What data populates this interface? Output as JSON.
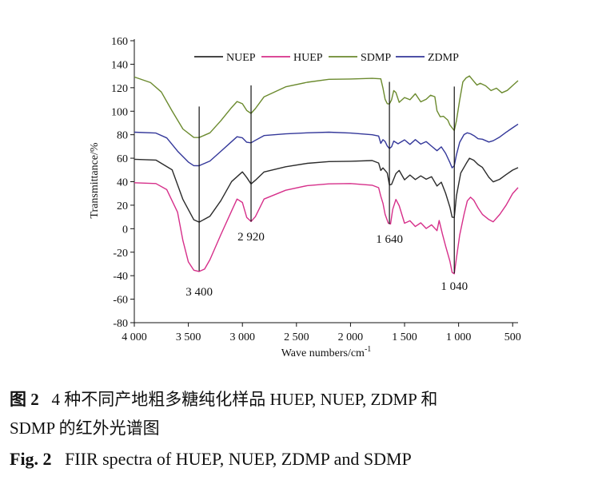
{
  "chart_data": {
    "type": "line",
    "xlabel": "Wave numbers/cm",
    "xlabel_sup": "-1",
    "ylabel": "Transmittance/%",
    "xlim": [
      4000,
      450
    ],
    "ylim": [
      -80,
      160
    ],
    "x_ticks": [
      {
        "value": 4000,
        "label": "4 000"
      },
      {
        "value": 3500,
        "label": "3 500"
      },
      {
        "value": 3000,
        "label": "3 000"
      },
      {
        "value": 2500,
        "label": "2 500"
      },
      {
        "value": 2000,
        "label": "2 000"
      },
      {
        "value": 1500,
        "label": "1 500"
      },
      {
        "value": 1000,
        "label": "1 000"
      },
      {
        "value": 500,
        "label": "500"
      }
    ],
    "y_ticks": [
      160,
      140,
      120,
      100,
      80,
      60,
      40,
      20,
      0,
      -20,
      -40,
      -60,
      -80
    ],
    "legend_position": "top",
    "series": [
      {
        "name": "NUEP",
        "color": "#2b2b2b",
        "points": [
          [
            4000,
            59
          ],
          [
            3800,
            58
          ],
          [
            3650,
            50
          ],
          [
            3550,
            25
          ],
          [
            3450,
            8
          ],
          [
            3400,
            6
          ],
          [
            3300,
            11
          ],
          [
            3200,
            24
          ],
          [
            3100,
            40
          ],
          [
            3000,
            48
          ],
          [
            2960,
            44
          ],
          [
            2920,
            38
          ],
          [
            2880,
            41
          ],
          [
            2800,
            48
          ],
          [
            2600,
            53
          ],
          [
            2400,
            56
          ],
          [
            2200,
            57
          ],
          [
            2000,
            57
          ],
          [
            1800,
            58
          ],
          [
            1740,
            56
          ],
          [
            1720,
            50
          ],
          [
            1700,
            52
          ],
          [
            1660,
            47
          ],
          [
            1640,
            37
          ],
          [
            1620,
            38
          ],
          [
            1580,
            47
          ],
          [
            1550,
            50
          ],
          [
            1500,
            42
          ],
          [
            1450,
            46
          ],
          [
            1400,
            42
          ],
          [
            1350,
            45
          ],
          [
            1300,
            42
          ],
          [
            1250,
            44
          ],
          [
            1200,
            36
          ],
          [
            1160,
            40
          ],
          [
            1120,
            30
          ],
          [
            1080,
            18
          ],
          [
            1060,
            10
          ],
          [
            1040,
            10
          ],
          [
            1020,
            28
          ],
          [
            980,
            47
          ],
          [
            930,
            55
          ],
          [
            900,
            60
          ],
          [
            860,
            58
          ],
          [
            820,
            55
          ],
          [
            780,
            52
          ],
          [
            720,
            44
          ],
          [
            680,
            40
          ],
          [
            620,
            42
          ],
          [
            560,
            46
          ],
          [
            500,
            50
          ],
          [
            450,
            52
          ]
        ]
      },
      {
        "name": "HUEP",
        "color": "#d62f8a",
        "points": [
          [
            4000,
            39
          ],
          [
            3800,
            38
          ],
          [
            3700,
            33
          ],
          [
            3600,
            14
          ],
          [
            3550,
            -10
          ],
          [
            3500,
            -28
          ],
          [
            3450,
            -35
          ],
          [
            3400,
            -36
          ],
          [
            3350,
            -34
          ],
          [
            3300,
            -26
          ],
          [
            3200,
            -5
          ],
          [
            3100,
            15
          ],
          [
            3050,
            25
          ],
          [
            3000,
            22
          ],
          [
            2960,
            10
          ],
          [
            2920,
            6
          ],
          [
            2880,
            10
          ],
          [
            2800,
            25
          ],
          [
            2600,
            33
          ],
          [
            2400,
            37
          ],
          [
            2200,
            38
          ],
          [
            2000,
            38
          ],
          [
            1800,
            37
          ],
          [
            1740,
            35
          ],
          [
            1720,
            28
          ],
          [
            1700,
            22
          ],
          [
            1680,
            12
          ],
          [
            1650,
            5
          ],
          [
            1630,
            4
          ],
          [
            1610,
            16
          ],
          [
            1580,
            25
          ],
          [
            1550,
            20
          ],
          [
            1500,
            5
          ],
          [
            1450,
            7
          ],
          [
            1400,
            2
          ],
          [
            1350,
            5
          ],
          [
            1300,
            0
          ],
          [
            1250,
            3
          ],
          [
            1200,
            -2
          ],
          [
            1180,
            7
          ],
          [
            1150,
            -5
          ],
          [
            1120,
            -15
          ],
          [
            1080,
            -28
          ],
          [
            1060,
            -37
          ],
          [
            1040,
            -38
          ],
          [
            1020,
            -25
          ],
          [
            990,
            -5
          ],
          [
            950,
            12
          ],
          [
            920,
            24
          ],
          [
            890,
            27
          ],
          [
            860,
            24
          ],
          [
            820,
            18
          ],
          [
            780,
            12
          ],
          [
            720,
            8
          ],
          [
            680,
            6
          ],
          [
            620,
            12
          ],
          [
            560,
            20
          ],
          [
            500,
            30
          ],
          [
            450,
            35
          ]
        ]
      },
      {
        "name": "SDMP",
        "color": "#6b8a2e",
        "points": [
          [
            4000,
            129
          ],
          [
            3850,
            124
          ],
          [
            3750,
            116
          ],
          [
            3650,
            100
          ],
          [
            3550,
            85
          ],
          [
            3450,
            78
          ],
          [
            3400,
            78
          ],
          [
            3300,
            82
          ],
          [
            3200,
            92
          ],
          [
            3100,
            103
          ],
          [
            3050,
            108
          ],
          [
            3000,
            106
          ],
          [
            2960,
            101
          ],
          [
            2920,
            98
          ],
          [
            2880,
            102
          ],
          [
            2800,
            112
          ],
          [
            2600,
            121
          ],
          [
            2400,
            125
          ],
          [
            2200,
            127
          ],
          [
            2000,
            127
          ],
          [
            1800,
            128
          ],
          [
            1720,
            128
          ],
          [
            1700,
            120
          ],
          [
            1680,
            110
          ],
          [
            1660,
            106
          ],
          [
            1640,
            106
          ],
          [
            1620,
            110
          ],
          [
            1600,
            118
          ],
          [
            1580,
            116
          ],
          [
            1550,
            108
          ],
          [
            1500,
            112
          ],
          [
            1450,
            110
          ],
          [
            1400,
            115
          ],
          [
            1350,
            108
          ],
          [
            1300,
            110
          ],
          [
            1260,
            114
          ],
          [
            1220,
            112
          ],
          [
            1200,
            100
          ],
          [
            1170,
            95
          ],
          [
            1140,
            96
          ],
          [
            1100,
            92
          ],
          [
            1080,
            88
          ],
          [
            1060,
            86
          ],
          [
            1040,
            84
          ],
          [
            1020,
            92
          ],
          [
            990,
            110
          ],
          [
            960,
            125
          ],
          [
            930,
            128
          ],
          [
            900,
            130
          ],
          [
            870,
            127
          ],
          [
            830,
            122
          ],
          [
            800,
            124
          ],
          [
            750,
            122
          ],
          [
            700,
            118
          ],
          [
            650,
            120
          ],
          [
            600,
            116
          ],
          [
            550,
            118
          ],
          [
            500,
            122
          ],
          [
            450,
            126
          ]
        ]
      },
      {
        "name": "ZDMP",
        "color": "#34389a",
        "points": [
          [
            4000,
            82
          ],
          [
            3800,
            81
          ],
          [
            3700,
            77
          ],
          [
            3600,
            66
          ],
          [
            3500,
            57
          ],
          [
            3450,
            54
          ],
          [
            3400,
            54
          ],
          [
            3300,
            58
          ],
          [
            3200,
            66
          ],
          [
            3100,
            74
          ],
          [
            3050,
            78
          ],
          [
            3000,
            77
          ],
          [
            2960,
            74
          ],
          [
            2920,
            73
          ],
          [
            2880,
            75
          ],
          [
            2800,
            79
          ],
          [
            2600,
            81
          ],
          [
            2400,
            82
          ],
          [
            2200,
            82
          ],
          [
            2000,
            81
          ],
          [
            1800,
            80
          ],
          [
            1740,
            79
          ],
          [
            1720,
            73
          ],
          [
            1700,
            76
          ],
          [
            1680,
            74
          ],
          [
            1660,
            70
          ],
          [
            1640,
            68
          ],
          [
            1620,
            70
          ],
          [
            1600,
            75
          ],
          [
            1560,
            72
          ],
          [
            1500,
            76
          ],
          [
            1450,
            72
          ],
          [
            1400,
            76
          ],
          [
            1350,
            72
          ],
          [
            1300,
            74
          ],
          [
            1250,
            70
          ],
          [
            1200,
            66
          ],
          [
            1160,
            70
          ],
          [
            1120,
            64
          ],
          [
            1080,
            56
          ],
          [
            1060,
            52
          ],
          [
            1040,
            54
          ],
          [
            1020,
            63
          ],
          [
            990,
            74
          ],
          [
            950,
            80
          ],
          [
            920,
            82
          ],
          [
            890,
            81
          ],
          [
            860,
            79
          ],
          [
            820,
            77
          ],
          [
            780,
            76
          ],
          [
            720,
            74
          ],
          [
            680,
            75
          ],
          [
            620,
            78
          ],
          [
            560,
            82
          ],
          [
            500,
            86
          ],
          [
            450,
            89
          ]
        ]
      }
    ],
    "annotations": [
      {
        "x": 3400,
        "label": "3 400",
        "line_top": 104,
        "line_bottom": -36
      },
      {
        "x": 2920,
        "label": "2 920",
        "line_top": 122,
        "line_bottom": 6
      },
      {
        "x": 1640,
        "label": "1 640",
        "line_top": 125,
        "line_bottom": 4
      },
      {
        "x": 1040,
        "label": "1 040",
        "line_top": 121,
        "line_bottom": -38
      }
    ]
  },
  "caption_cn": {
    "label": "图 2",
    "text_line1": "4 种不同产地粗多糖纯化样品 HUEP, NUEP, ZDMP 和",
    "text_line2": "SDMP 的红外光谱图"
  },
  "caption_en": {
    "label": "Fig. 2",
    "text": "FIIR spectra of HUEP, NUEP, ZDMP and SDMP"
  }
}
